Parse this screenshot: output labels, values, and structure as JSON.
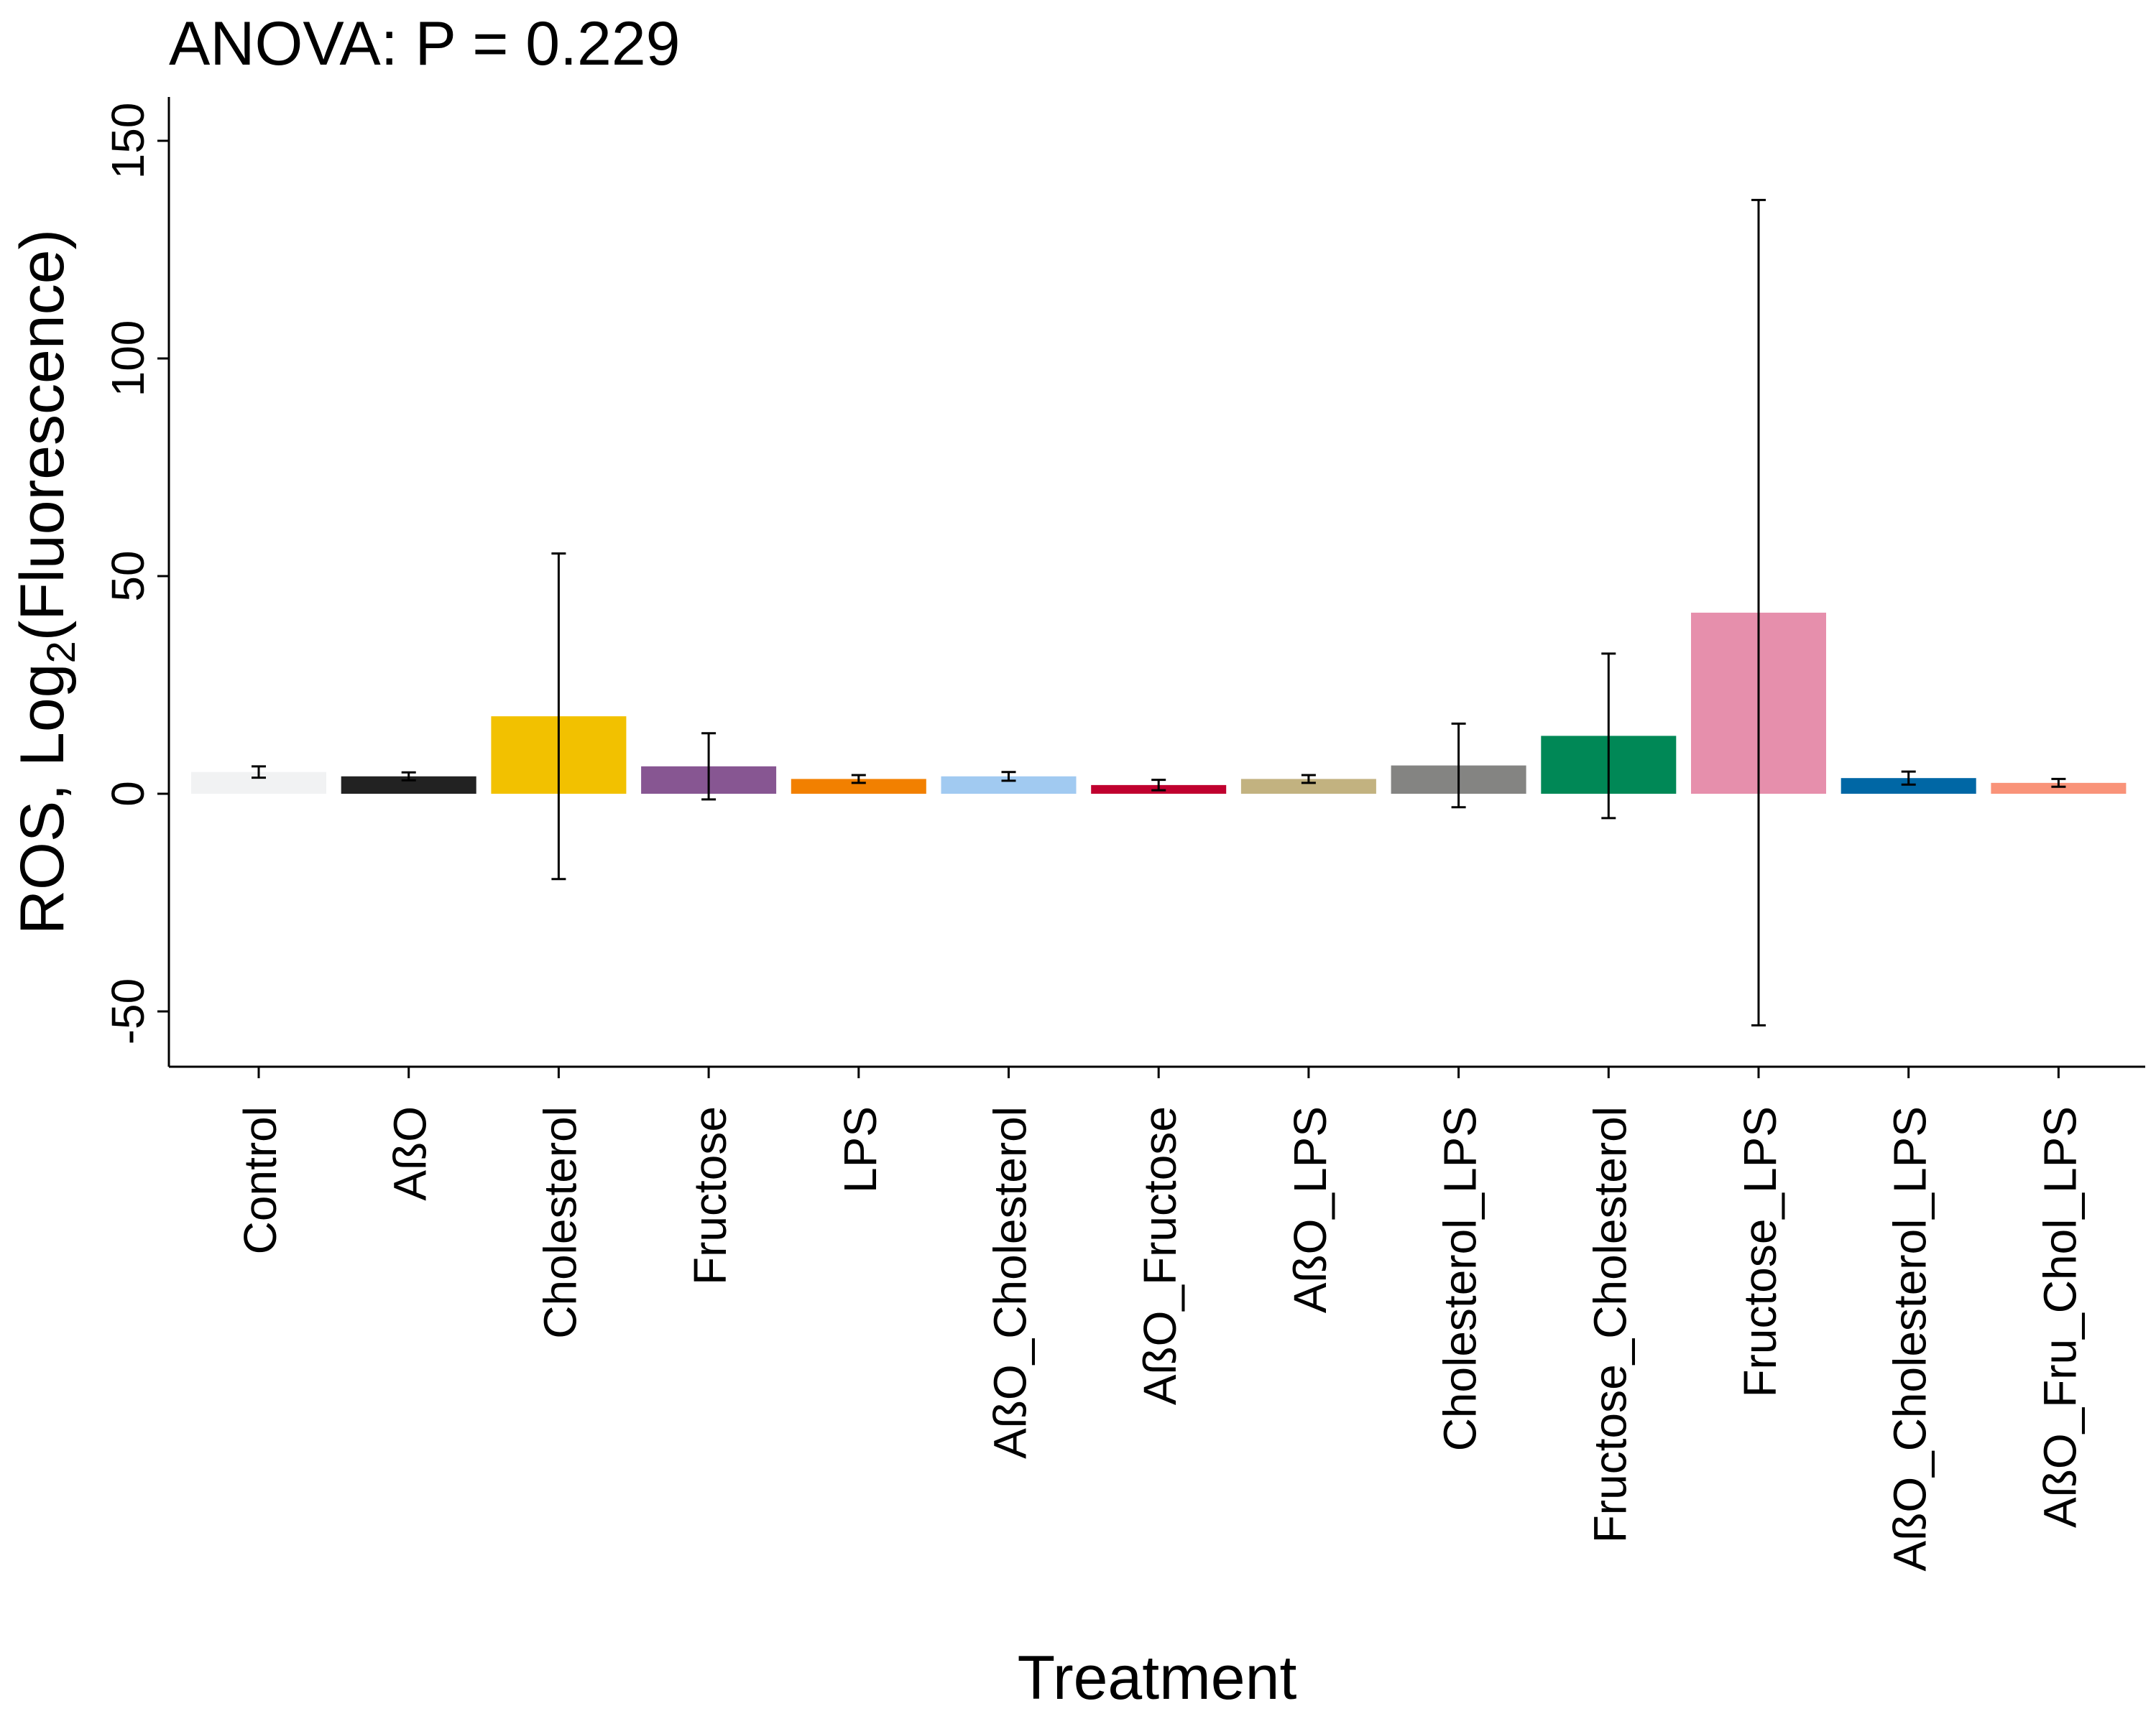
{
  "chart_data": {
    "type": "bar",
    "title": "ANOVA:  P  =  0.229",
    "xlabel": "Treatment",
    "ylabel": {
      "prefix": "ROS, Log",
      "subscript": "2",
      "suffix": "(Fluorescence)"
    },
    "ylim": [
      -62,
      160
    ],
    "yticks": [
      -50,
      0,
      50,
      100,
      150
    ],
    "grid": false,
    "legend": "none",
    "categories": [
      "Control",
      "AßO",
      "Cholesterol",
      "Fructose",
      "LPS",
      "AßO_Cholesterol",
      "AßO_Fructose",
      "AßO_LPS",
      "Cholesterol_LPS",
      "Fructose_Cholesterol",
      "Fructose_LPS",
      "AßO_Cholesterol_LPS",
      "AßO_Fru_Chol_LPS"
    ],
    "values": [
      5.0,
      4.0,
      17.8,
      6.3,
      3.4,
      4.0,
      2.0,
      3.4,
      6.5,
      13.3,
      41.6,
      3.6,
      2.5
    ],
    "error": [
      1.3,
      0.9,
      37.4,
      7.6,
      0.9,
      1.0,
      1.2,
      0.9,
      9.6,
      18.9,
      94.8,
      1.5,
      0.9
    ],
    "colors": [
      "#f1f2f3",
      "#222222",
      "#f2c100",
      "#875692",
      "#f28000",
      "#a1caf1",
      "#c0002f",
      "#c2b280",
      "#848482",
      "#008856",
      "#e68fac",
      "#0067a5",
      "#f99379"
    ]
  }
}
